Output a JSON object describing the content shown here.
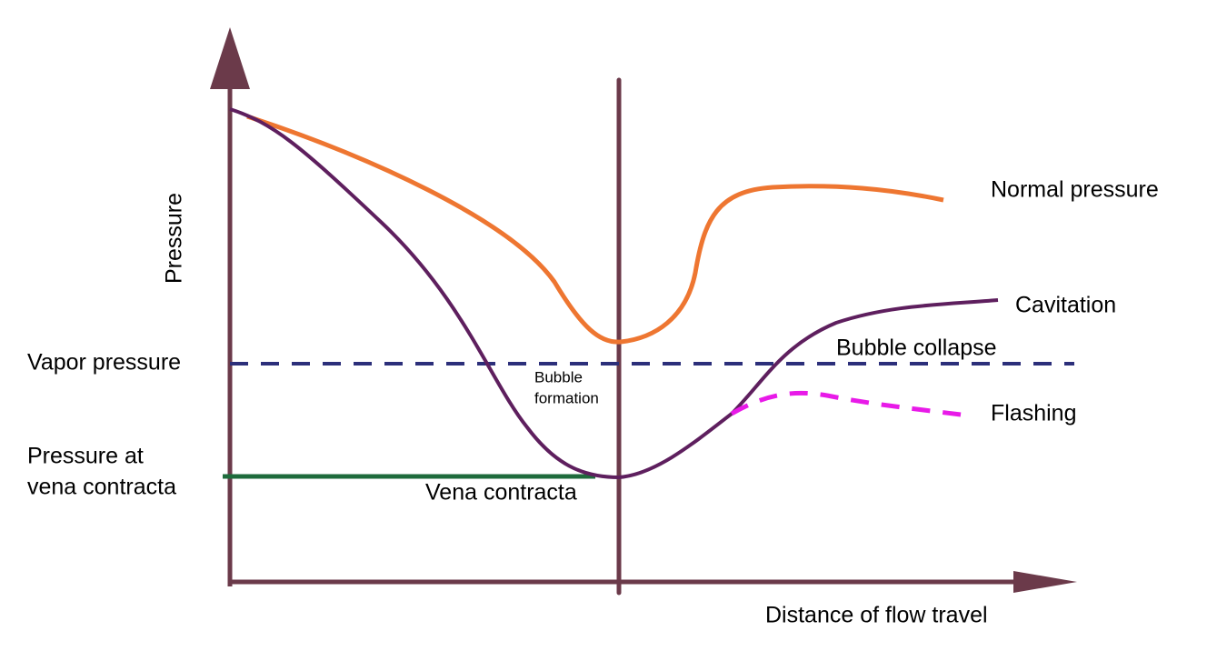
{
  "axes": {
    "y_label": "Pressure",
    "x_label": "Distance of flow travel"
  },
  "curves": {
    "normal": "Normal pressure",
    "cavitation": "Cavitation",
    "flashing": "Flashing",
    "bubble_collapse": "Bubble collapse"
  },
  "levels": {
    "vapor": "Vapor pressure",
    "vena_contracta": [
      "Pressure at",
      "vena contracta"
    ]
  },
  "annotations": {
    "vena_contracta": "Vena contracta",
    "bubble_formation": [
      "Bubble",
      "formation"
    ]
  }
}
